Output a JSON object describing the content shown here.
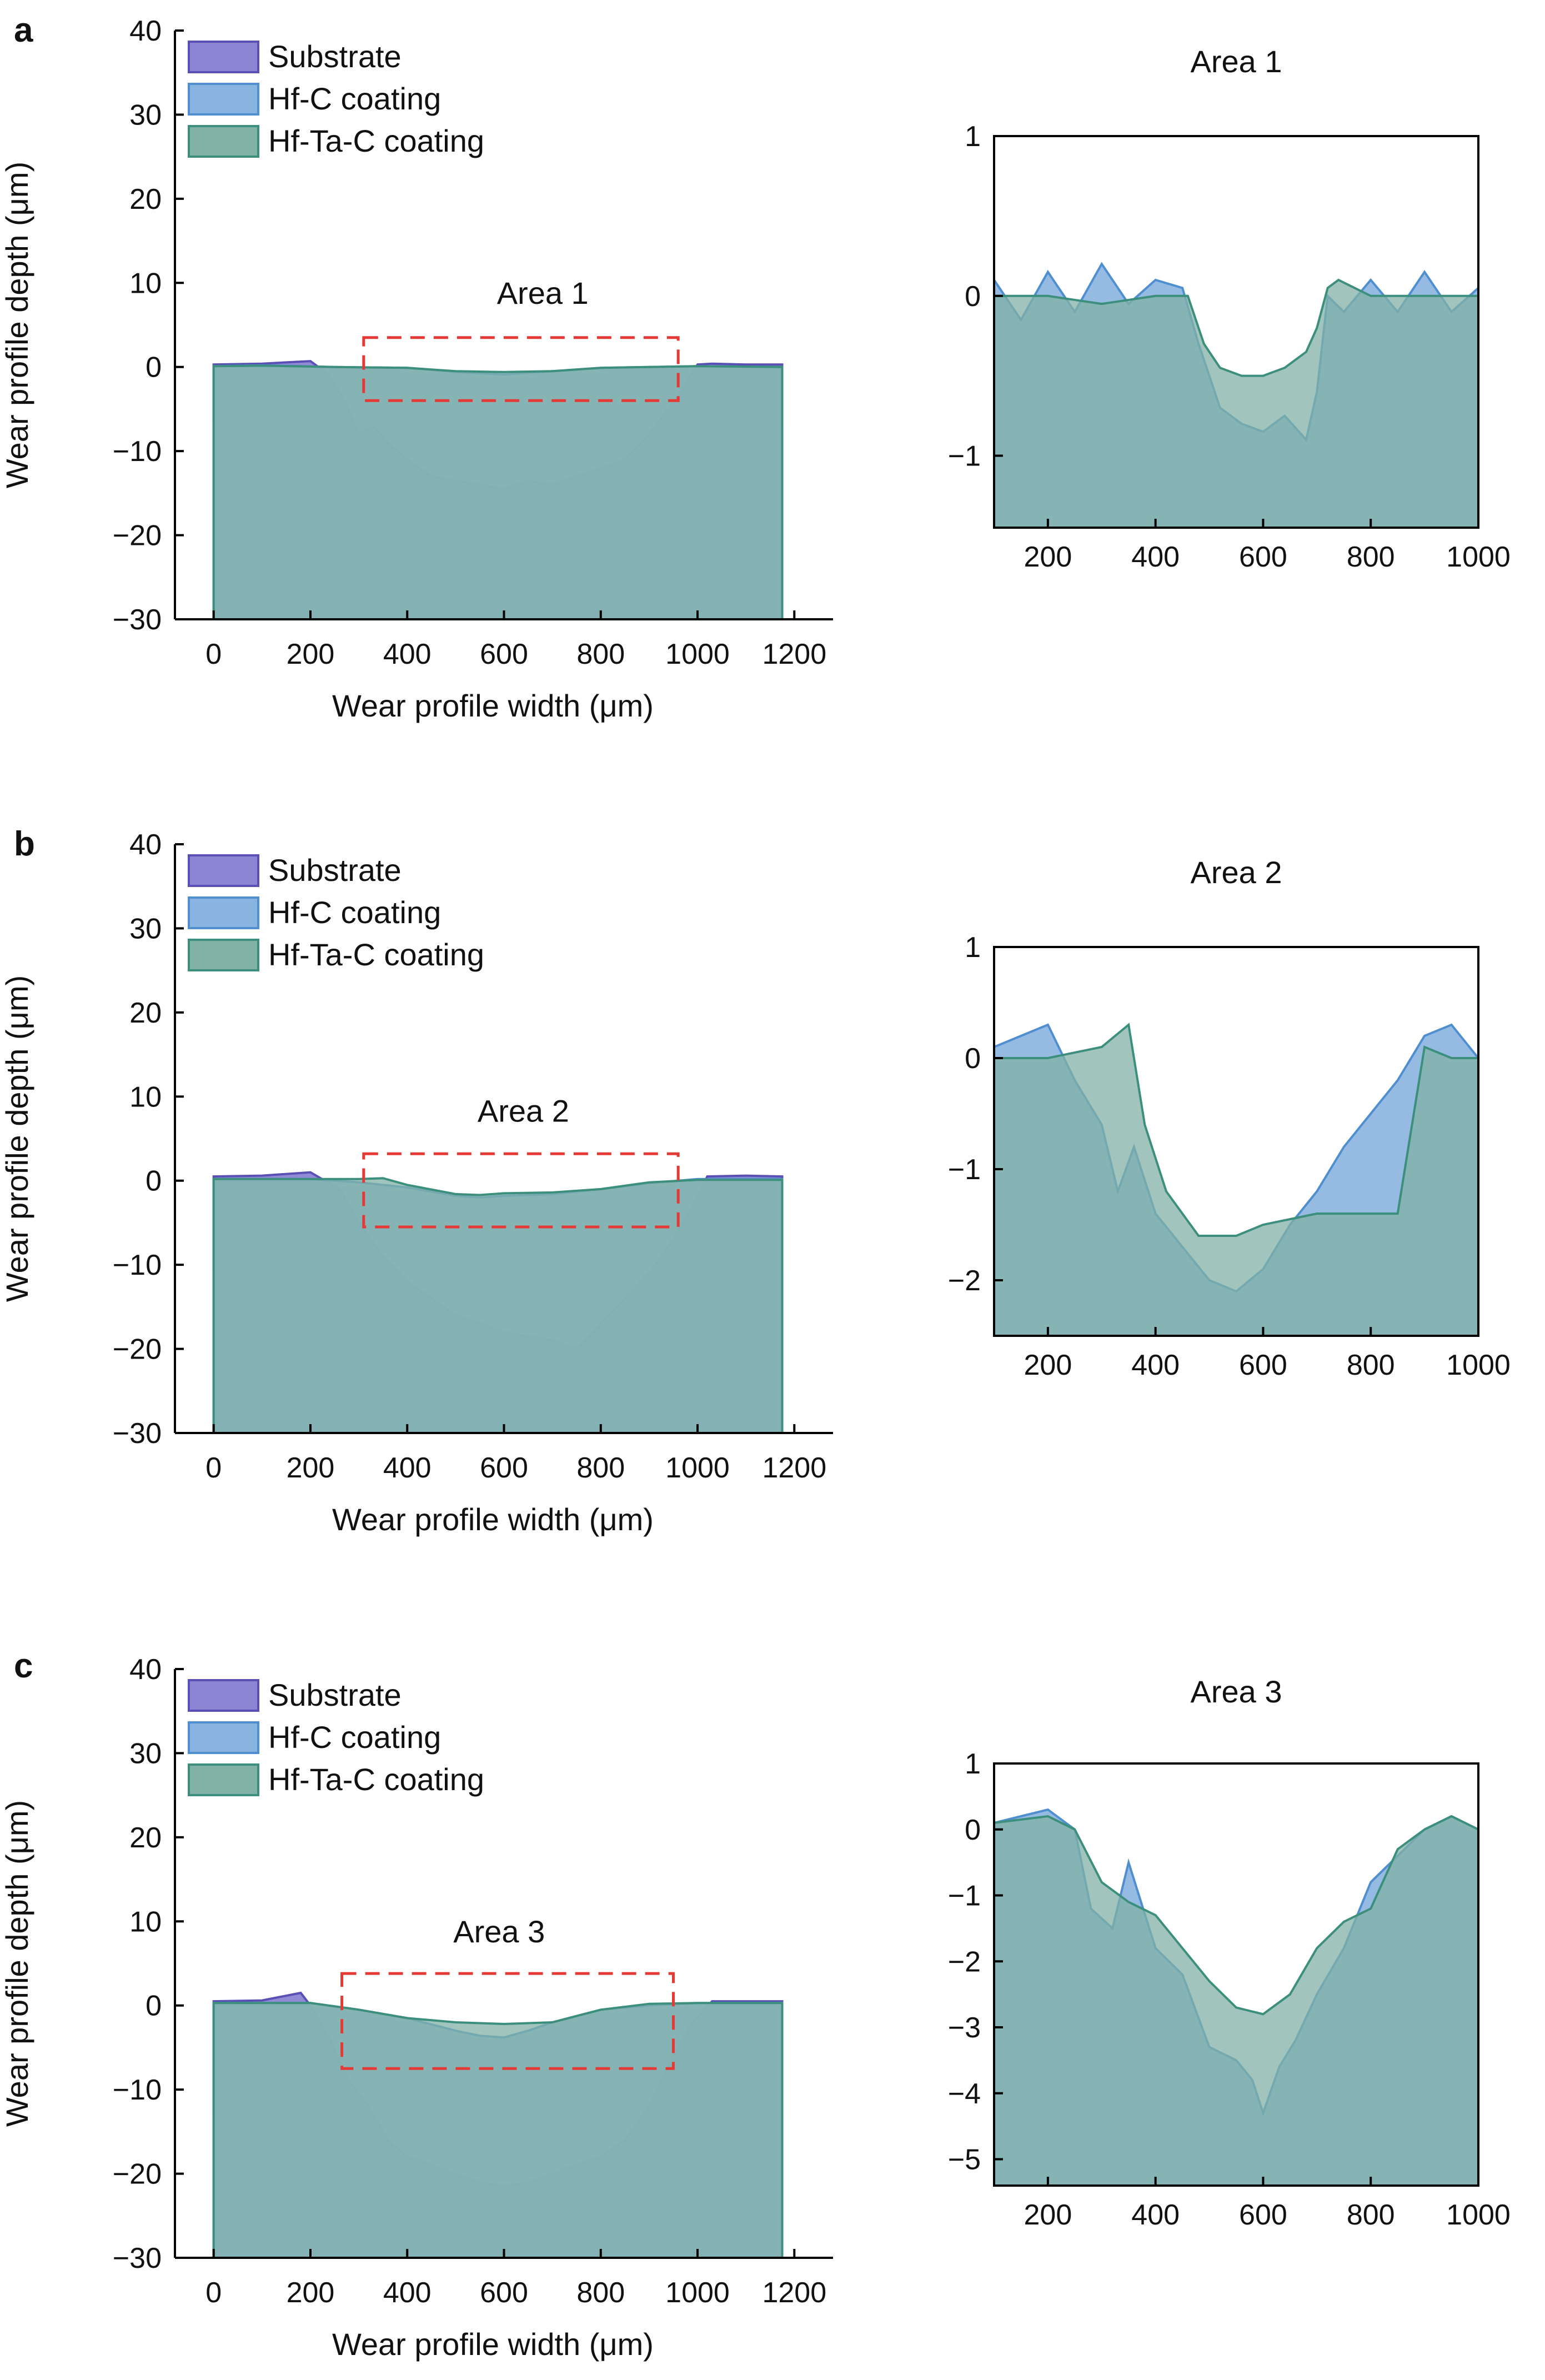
{
  "figure": {
    "x_unit_label": "Wear profile width (μm)",
    "y_unit_label": "Wear profile depth (μm)"
  },
  "colors": {
    "substrate": "#8b85d4",
    "substrate_edge": "#5a4fb5",
    "hf_c": "#89b4e0",
    "hf_c_edge": "#4f8fcf",
    "hf_ta_c": "#82b2a6",
    "hf_ta_c_edge": "#3d8f7d",
    "box": "#e53935"
  },
  "chart_data": [
    {
      "id": "a-main",
      "panel_label": "a",
      "type": "area",
      "title": "",
      "xlabel": "Wear profile width (μm)",
      "ylabel": "Wear profile depth (μm)",
      "xlim": [
        -80,
        1280
      ],
      "ylim": [
        -30,
        40
      ],
      "xticks": [
        0,
        200,
        400,
        600,
        800,
        1000,
        1200
      ],
      "yticks": [
        -30,
        -20,
        -10,
        0,
        10,
        20,
        30,
        40
      ],
      "legend": [
        "Substrate",
        "Hf-C coating",
        "Hf-Ta-C coating"
      ],
      "annotation": {
        "text": "Area 1",
        "x": 680,
        "y": 7.5
      },
      "box": {
        "x0": 310,
        "x1": 960,
        "y0": -4,
        "y1": 3.5
      },
      "series": [
        {
          "name": "Substrate",
          "x": [
            0,
            100,
            200,
            240,
            270,
            300,
            330,
            360,
            400,
            450,
            500,
            550,
            600,
            650,
            700,
            750,
            800,
            850,
            900,
            940,
            970,
            1000,
            1030,
            1100,
            1175
          ],
          "y": [
            0.3,
            0.4,
            0.7,
            -1,
            -4,
            -8,
            -7,
            -9,
            -11,
            -13,
            -13.5,
            -14,
            -14.5,
            -13.5,
            -14,
            -13,
            -12,
            -11,
            -8,
            -5,
            -2.5,
            0.3,
            0.4,
            0.3,
            0.3
          ]
        },
        {
          "name": "Hf-C coating",
          "x": [
            0,
            100,
            250,
            400,
            500,
            600,
            700,
            800,
            900,
            1000,
            1175
          ],
          "y": [
            0.1,
            0.2,
            0,
            -0.1,
            -0.6,
            -0.9,
            -0.5,
            -0.1,
            0,
            0.1,
            0
          ]
        },
        {
          "name": "Hf-Ta-C coating",
          "x": [
            0,
            100,
            250,
            400,
            500,
            600,
            700,
            800,
            900,
            1000,
            1175
          ],
          "y": [
            0.1,
            0.15,
            0,
            -0.1,
            -0.5,
            -0.6,
            -0.5,
            -0.1,
            0,
            0.1,
            0
          ]
        }
      ]
    },
    {
      "id": "a-inset",
      "type": "area",
      "title": "Area 1",
      "xlim": [
        100,
        1000
      ],
      "ylim": [
        -1.45,
        1
      ],
      "xticks": [
        200,
        400,
        600,
        800,
        1000
      ],
      "yticks": [
        -1,
        0,
        1
      ],
      "series": [
        {
          "name": "Hf-C coating",
          "x": [
            100,
            150,
            200,
            250,
            300,
            350,
            400,
            450,
            480,
            520,
            560,
            600,
            640,
            680,
            700,
            720,
            750,
            800,
            850,
            900,
            950,
            1000
          ],
          "y": [
            0.1,
            -0.15,
            0.15,
            -0.1,
            0.2,
            -0.05,
            0.1,
            0.05,
            -0.3,
            -0.7,
            -0.8,
            -0.85,
            -0.75,
            -0.9,
            -0.6,
            0,
            -0.1,
            0.1,
            -0.1,
            0.15,
            -0.1,
            0.05
          ]
        },
        {
          "name": "Hf-Ta-C coating",
          "x": [
            100,
            200,
            300,
            400,
            460,
            490,
            520,
            560,
            600,
            640,
            680,
            700,
            720,
            740,
            800,
            900,
            1000
          ],
          "y": [
            0,
            0,
            -0.05,
            0,
            0,
            -0.3,
            -0.45,
            -0.5,
            -0.5,
            -0.45,
            -0.35,
            -0.2,
            0.05,
            0.1,
            0,
            0,
            0
          ]
        }
      ]
    },
    {
      "id": "b-main",
      "panel_label": "b",
      "type": "area",
      "title": "",
      "xlabel": "Wear profile width (μm)",
      "ylabel": "Wear profile depth (μm)",
      "xlim": [
        -80,
        1280
      ],
      "ylim": [
        -30,
        40
      ],
      "xticks": [
        0,
        200,
        400,
        600,
        800,
        1000,
        1200
      ],
      "yticks": [
        -30,
        -20,
        -10,
        0,
        10,
        20,
        30,
        40
      ],
      "legend": [
        "Substrate",
        "Hf-C coating",
        "Hf-Ta-C coating"
      ],
      "annotation": {
        "text": "Area 2",
        "x": 640,
        "y": 7
      },
      "box": {
        "x0": 310,
        "x1": 960,
        "y0": -5.5,
        "y1": 3.2
      },
      "series": [
        {
          "name": "Substrate",
          "x": [
            0,
            100,
            200,
            260,
            300,
            350,
            400,
            450,
            500,
            550,
            600,
            650,
            700,
            750,
            800,
            850,
            900,
            950,
            990,
            1020,
            1100,
            1175
          ],
          "y": [
            0.5,
            0.6,
            1,
            -1,
            -5,
            -9,
            -12,
            -14,
            -16,
            -17,
            -18,
            -18.5,
            -19,
            -20,
            -17,
            -14,
            -11,
            -7,
            -3,
            0.5,
            0.6,
            0.5
          ]
        },
        {
          "name": "Hf-C coating",
          "x": [
            0,
            200,
            300,
            400,
            500,
            550,
            600,
            700,
            800,
            900,
            1000,
            1175
          ],
          "y": [
            0.2,
            0.2,
            -0.2,
            -0.8,
            -1.8,
            -2,
            -1.8,
            -1.6,
            -1,
            -0.3,
            0.2,
            0.2
          ]
        },
        {
          "name": "Hf-Ta-C coating",
          "x": [
            0,
            200,
            300,
            350,
            400,
            500,
            550,
            600,
            700,
            800,
            900,
            1000,
            1175
          ],
          "y": [
            0.2,
            0.2,
            0.2,
            0.3,
            -0.5,
            -1.6,
            -1.7,
            -1.5,
            -1.4,
            -1,
            -0.2,
            0.1,
            0.1
          ]
        }
      ]
    },
    {
      "id": "b-inset",
      "type": "area",
      "title": "Area 2",
      "xlim": [
        100,
        1000
      ],
      "ylim": [
        -2.5,
        1
      ],
      "xticks": [
        200,
        400,
        600,
        800,
        1000
      ],
      "yticks": [
        -2,
        -1,
        0,
        1
      ],
      "series": [
        {
          "name": "Hf-C coating",
          "x": [
            100,
            150,
            200,
            250,
            300,
            330,
            360,
            400,
            450,
            500,
            550,
            600,
            650,
            700,
            750,
            800,
            850,
            900,
            950,
            1000
          ],
          "y": [
            0.1,
            0.2,
            0.3,
            -0.2,
            -0.6,
            -1.2,
            -0.8,
            -1.4,
            -1.7,
            -2,
            -2.1,
            -1.9,
            -1.5,
            -1.2,
            -0.8,
            -0.5,
            -0.2,
            0.2,
            0.3,
            0
          ]
        },
        {
          "name": "Hf-Ta-C coating",
          "x": [
            100,
            200,
            300,
            350,
            380,
            420,
            480,
            550,
            600,
            650,
            700,
            750,
            800,
            850,
            900,
            950,
            1000
          ],
          "y": [
            0,
            0,
            0.1,
            0.3,
            -0.6,
            -1.2,
            -1.6,
            -1.6,
            -1.5,
            -1.45,
            -1.4,
            -1.4,
            -1.4,
            -1.4,
            0.1,
            0,
            0
          ]
        }
      ]
    },
    {
      "id": "c-main",
      "panel_label": "c",
      "type": "area",
      "title": "",
      "xlabel": "Wear profile width (μm)",
      "ylabel": "Wear profile depth (μm)",
      "xlim": [
        -80,
        1280
      ],
      "ylim": [
        -30,
        40
      ],
      "xticks": [
        0,
        200,
        400,
        600,
        800,
        1000,
        1200
      ],
      "yticks": [
        -30,
        -20,
        -10,
        0,
        10,
        20,
        30,
        40
      ],
      "legend": [
        "Substrate",
        "Hf-C coating",
        "Hf-Ta-C coating"
      ],
      "annotation": {
        "text": "Area 3",
        "x": 590,
        "y": 7.5
      },
      "box": {
        "x0": 265,
        "x1": 950,
        "y0": -7.5,
        "y1": 3.8
      },
      "series": [
        {
          "name": "Substrate",
          "x": [
            0,
            100,
            180,
            200,
            240,
            280,
            320,
            360,
            400,
            450,
            500,
            550,
            600,
            650,
            700,
            750,
            800,
            850,
            900,
            950,
            990,
            1030,
            1100,
            1175
          ],
          "y": [
            0.5,
            0.6,
            1.5,
            0,
            -4,
            -9,
            -12,
            -16,
            -18,
            -19,
            -20,
            -21,
            -21.5,
            -21,
            -20,
            -19,
            -18,
            -16,
            -12,
            -6,
            -2,
            0.5,
            0.5,
            0.5
          ]
        },
        {
          "name": "Hf-C coating",
          "x": [
            0,
            200,
            300,
            400,
            500,
            550,
            600,
            650,
            700,
            800,
            900,
            1000,
            1175
          ],
          "y": [
            0.3,
            0.3,
            -0.5,
            -1.5,
            -3,
            -3.6,
            -3.8,
            -3,
            -2,
            -0.5,
            0,
            0.3,
            0.3
          ]
        },
        {
          "name": "Hf-Ta-C coating",
          "x": [
            0,
            200,
            300,
            400,
            500,
            600,
            700,
            800,
            900,
            1000,
            1175
          ],
          "y": [
            0.3,
            0.3,
            -0.5,
            -1.5,
            -2,
            -2.2,
            -2,
            -0.5,
            0.2,
            0.3,
            0.3
          ]
        }
      ]
    },
    {
      "id": "c-inset",
      "type": "area",
      "title": "Area 3",
      "xlim": [
        100,
        1000
      ],
      "ylim": [
        -5.4,
        1
      ],
      "xticks": [
        200,
        400,
        600,
        800,
        1000
      ],
      "yticks": [
        -5,
        -4,
        -3,
        -2,
        -1,
        0,
        1
      ],
      "series": [
        {
          "name": "Hf-C coating",
          "x": [
            100,
            150,
            200,
            250,
            280,
            320,
            350,
            400,
            450,
            500,
            550,
            580,
            600,
            630,
            660,
            700,
            750,
            800,
            850,
            900,
            950,
            1000
          ],
          "y": [
            0.1,
            0.2,
            0.3,
            0,
            -1.2,
            -1.5,
            -0.5,
            -1.8,
            -2.2,
            -3.3,
            -3.5,
            -3.8,
            -4.3,
            -3.6,
            -3.2,
            -2.5,
            -1.8,
            -0.8,
            -0.4,
            0,
            0.2,
            0
          ]
        },
        {
          "name": "Hf-Ta-C coating",
          "x": [
            100,
            200,
            250,
            300,
            350,
            400,
            450,
            500,
            550,
            600,
            650,
            700,
            750,
            800,
            850,
            900,
            950,
            1000
          ],
          "y": [
            0.1,
            0.2,
            0,
            -0.8,
            -1.1,
            -1.3,
            -1.8,
            -2.3,
            -2.7,
            -2.8,
            -2.5,
            -1.8,
            -1.4,
            -1.2,
            -0.3,
            0,
            0.2,
            0
          ]
        }
      ]
    }
  ]
}
